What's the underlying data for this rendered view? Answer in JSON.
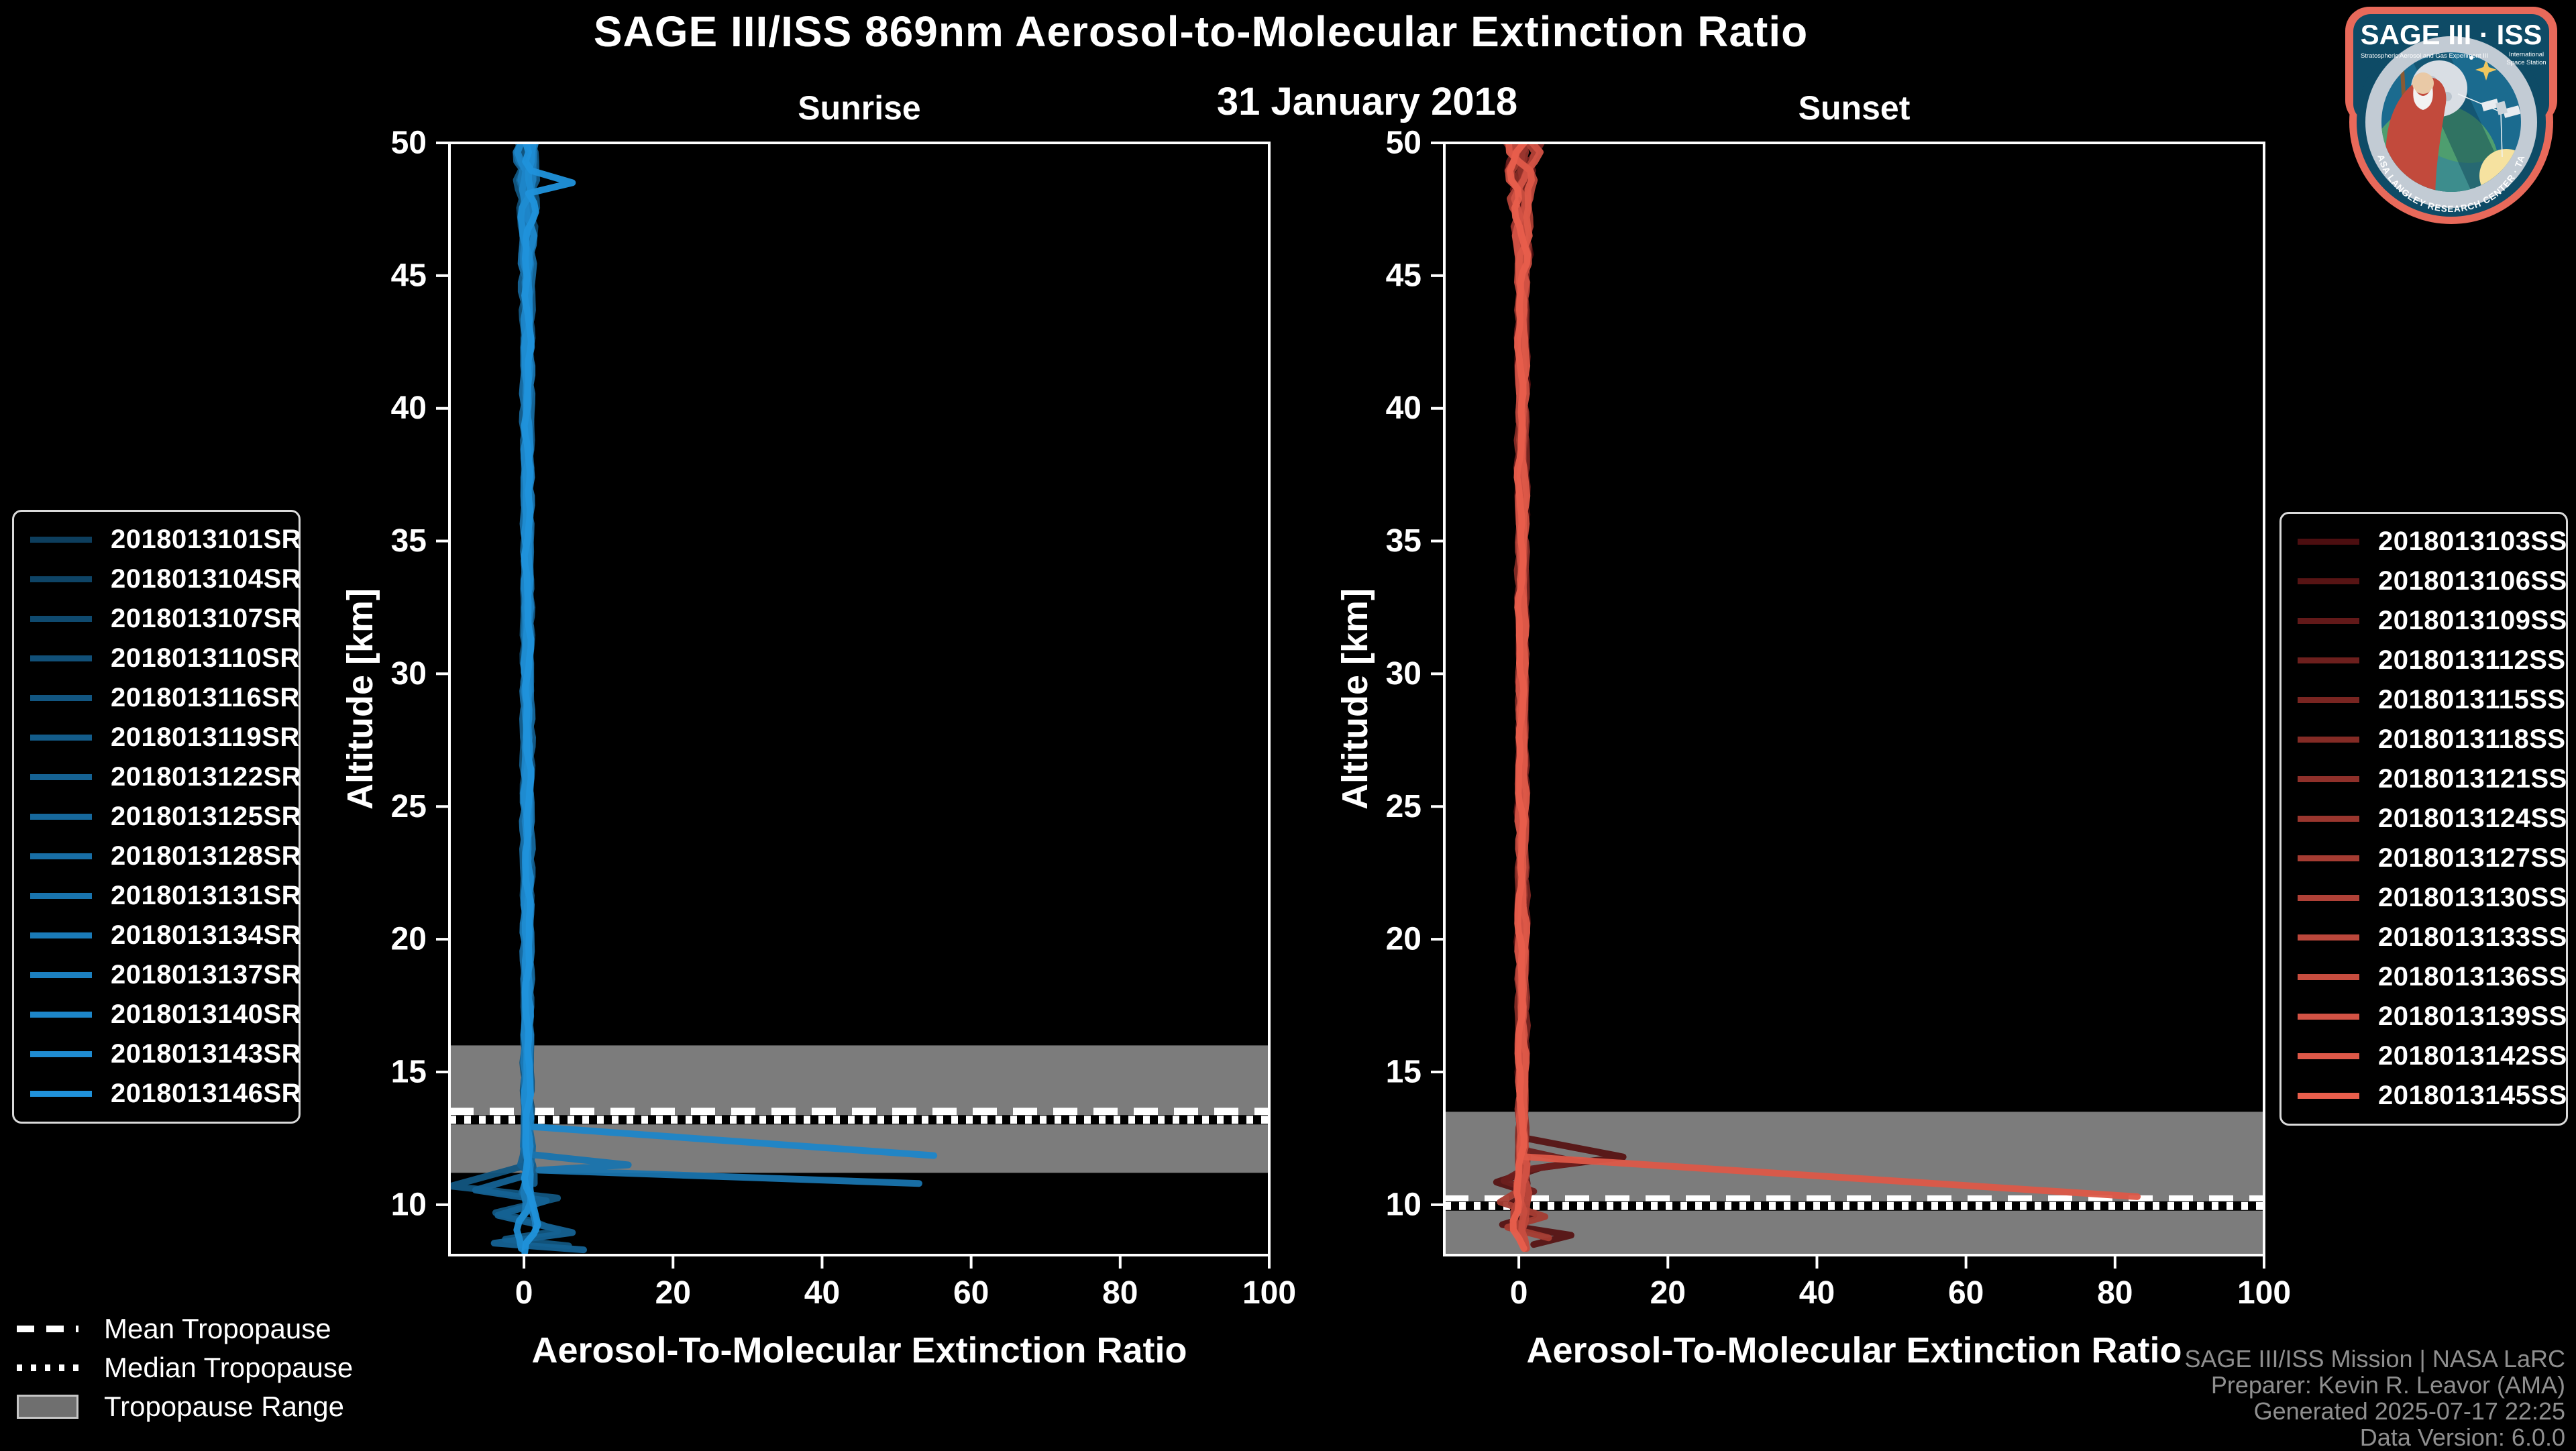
{
  "figure": {
    "title": "SAGE III/ISS 869nm Aerosol-to-Molecular Extinction Ratio",
    "date": "31 January 2018"
  },
  "tropopause_legend": {
    "mean_label": "Mean Tropopause",
    "median_label": "Median Tropopause",
    "range_label": "Tropopause Range"
  },
  "attribution": {
    "lines": [
      "SAGE III/ISS Mission | NASA LaRC",
      "Preparer: Kevin R. Leavor (AMA)",
      "Generated 2025-07-17 22:25",
      "Data Version: 6.0.0"
    ]
  },
  "logo": {
    "title": "SAGE III · ISS",
    "subtitle_left": "Stratospheric Aerosol and Gas Experiment III",
    "subtitle_right_1": "International",
    "subtitle_right_2": "Space Station",
    "ring_text": "BALL · NASA LANGLEY RESEARCH CENTER · TAS-I · ESA",
    "border_color": "#E8695A",
    "shield_color": "#0E4B66",
    "ring_color": "#C2CBD4",
    "scene_color": "#1B6B8F"
  },
  "colors": {
    "background": "#000000",
    "axis": "#FFFFFF",
    "tropopause_band": "#7C7C7C",
    "attribution_text": "#8F8F8F"
  },
  "chart_data": [
    {
      "id": "sunrise",
      "type": "line",
      "title": "Sunrise",
      "xlabel": "Aerosol-To-Molecular Extinction Ratio",
      "ylabel": "Altitude [km]",
      "xlim": [
        -10,
        100
      ],
      "ylim": [
        8.1,
        50
      ],
      "xticks": [
        0,
        20,
        40,
        60,
        80,
        100
      ],
      "yticks": [
        10,
        15,
        20,
        25,
        30,
        35,
        40,
        45,
        50
      ],
      "legend_side": "left",
      "grid": false,
      "profile_shape": "near-zero extinction ratio bundle from 50 km down to the tropopause with excursions below 13 km",
      "tropopause": {
        "mean_km": 13.5,
        "median_km": 13.2,
        "range_km": [
          11.2,
          16.0
        ]
      },
      "series": [
        {
          "label": "2018013101SR",
          "color": "#0D3E5D",
          "end_km": 10.9
        },
        {
          "label": "2018013104SR",
          "color": "#0E4466",
          "end_km": 11.1
        },
        {
          "label": "2018013107SR",
          "color": "#0F4A6F",
          "end_km": 10.7
        },
        {
          "label": "2018013110SR",
          "color": "#115078",
          "end_km": 11.3
        },
        {
          "label": "2018013116SR",
          "color": "#125681",
          "end_km": 8.45,
          "waypoints_x_km": [
            [
              0.5,
              11.5
            ],
            [
              -9.8,
              10.7
            ],
            [
              4.5,
              10.25
            ],
            [
              -3.8,
              9.7
            ],
            [
              1.5,
              9.35
            ],
            [
              4.5,
              9.0
            ],
            [
              -2.5,
              8.7
            ],
            [
              6,
              8.45
            ]
          ]
        },
        {
          "label": "2018013119SR",
          "color": "#135C8A",
          "end_km": 10.6
        },
        {
          "label": "2018013122SR",
          "color": "#156293",
          "end_km": 8.3,
          "waypoints_x_km": [
            [
              0.8,
              11.15
            ],
            [
              -6.5,
              10.55
            ],
            [
              3,
              10.15
            ],
            [
              -3.5,
              9.6
            ],
            [
              6.5,
              8.95
            ],
            [
              -4,
              8.55
            ],
            [
              8,
              8.3
            ]
          ]
        },
        {
          "label": "2018013125SR",
          "color": "#16689C",
          "end_km": 10.4
        },
        {
          "label": "2018013128SR",
          "color": "#186EA5",
          "end_km": 9.6
        },
        {
          "label": "2018013131SR",
          "color": "#1974AE",
          "end_km": 10.8,
          "waypoints_x_km": [
            [
              0.6,
              11.9
            ],
            [
              14,
              11.5
            ],
            [
              2,
              11.3
            ],
            [
              53,
              10.8
            ]
          ]
        },
        {
          "label": "2018013134SR",
          "color": "#1A7AB7",
          "end_km": 9.2
        },
        {
          "label": "2018013137SR",
          "color": "#1C80C0",
          "end_km": 9.0
        },
        {
          "label": "2018013140SR",
          "color": "#1D86C9",
          "end_km": 11.85,
          "waypoints_x_km": [
            [
              0.5,
              12.95
            ],
            [
              55,
              11.85
            ]
          ]
        },
        {
          "label": "2018013143SR",
          "color": "#1F8CD2",
          "end_km": 8.1
        },
        {
          "label": "2018013146SR",
          "color": "#2092DB",
          "end_km": 8.1,
          "resume": true,
          "waypoints_x_km": [
            [
              1,
              48.95
            ],
            [
              6.5,
              48.5
            ],
            [
              0.6,
              48.1
            ]
          ]
        }
      ]
    },
    {
      "id": "sunset",
      "type": "line",
      "title": "Sunset",
      "xlabel": "Aerosol-To-Molecular Extinction Ratio",
      "ylabel": "Altitude [km]",
      "xlim": [
        -10,
        100
      ],
      "ylim": [
        8.1,
        50
      ],
      "xticks": [
        0,
        20,
        40,
        60,
        80,
        100
      ],
      "yticks": [
        10,
        15,
        20,
        25,
        30,
        35,
        40,
        45,
        50
      ],
      "legend_side": "right",
      "grid": false,
      "profile_shape": "near-zero extinction ratio bundle from 50 km down to the tropopause with excursions below 12.5 km",
      "tropopause": {
        "mean_km": 10.2,
        "median_km": 9.95,
        "range_km": [
          8.1,
          13.5
        ]
      },
      "series": [
        {
          "label": "2018013103SS",
          "color": "#4C0E10",
          "end_km": 10.5
        },
        {
          "label": "2018013106SS",
          "color": "#571414",
          "end_km": 8.5,
          "waypoints_x_km": [
            [
              1,
              12.5
            ],
            [
              14,
              11.8
            ],
            [
              3,
              11.4
            ],
            [
              -3,
              10.85
            ],
            [
              1.5,
              10.45
            ],
            [
              -1,
              10.05
            ],
            [
              2,
              9.6
            ],
            [
              -2.2,
              9.25
            ],
            [
              7,
              8.85
            ],
            [
              2,
              8.5
            ]
          ]
        },
        {
          "label": "2018013109SS",
          "color": "#621919",
          "end_km": 10.2
        },
        {
          "label": "2018013112SS",
          "color": "#6D1F1D",
          "end_km": 10.5,
          "waypoints_x_km": [
            [
              0.8,
              12.05
            ],
            [
              8,
              11.6
            ],
            [
              0.5,
              11.3
            ],
            [
              -2,
              10.9
            ],
            [
              2,
              10.5
            ]
          ]
        },
        {
          "label": "2018013115SS",
          "color": "#792521",
          "end_km": 9.8
        },
        {
          "label": "2018013118SS",
          "color": "#842B25",
          "end_km": 10.0
        },
        {
          "label": "2018013121SS",
          "color": "#8F302A",
          "end_km": 9.3
        },
        {
          "label": "2018013124SS",
          "color": "#9A362E",
          "end_km": 10.6
        },
        {
          "label": "2018013127SS",
          "color": "#A53C32",
          "end_km": 8.75,
          "waypoints_x_km": [
            [
              0.5,
              10.6
            ],
            [
              -2.5,
              10.1
            ],
            [
              3.5,
              9.55
            ],
            [
              -1.5,
              9.15
            ],
            [
              4,
              8.75
            ]
          ]
        },
        {
          "label": "2018013130SS",
          "color": "#B04137",
          "end_km": 9.0
        },
        {
          "label": "2018013133SS",
          "color": "#BB473B",
          "end_km": 8.2
        },
        {
          "label": "2018013136SS",
          "color": "#C74D3F",
          "end_km": 8.1
        },
        {
          "label": "2018013139SS",
          "color": "#D25244",
          "end_km": 9.4
        },
        {
          "label": "2018013142SS",
          "color": "#DD5848",
          "end_km": 10.3,
          "waypoints_x_km": [
            [
              1,
              11.8
            ],
            [
              83,
              10.3
            ]
          ]
        },
        {
          "label": "2018013145SS",
          "color": "#E85E4C",
          "end_km": 8.1
        }
      ]
    }
  ]
}
